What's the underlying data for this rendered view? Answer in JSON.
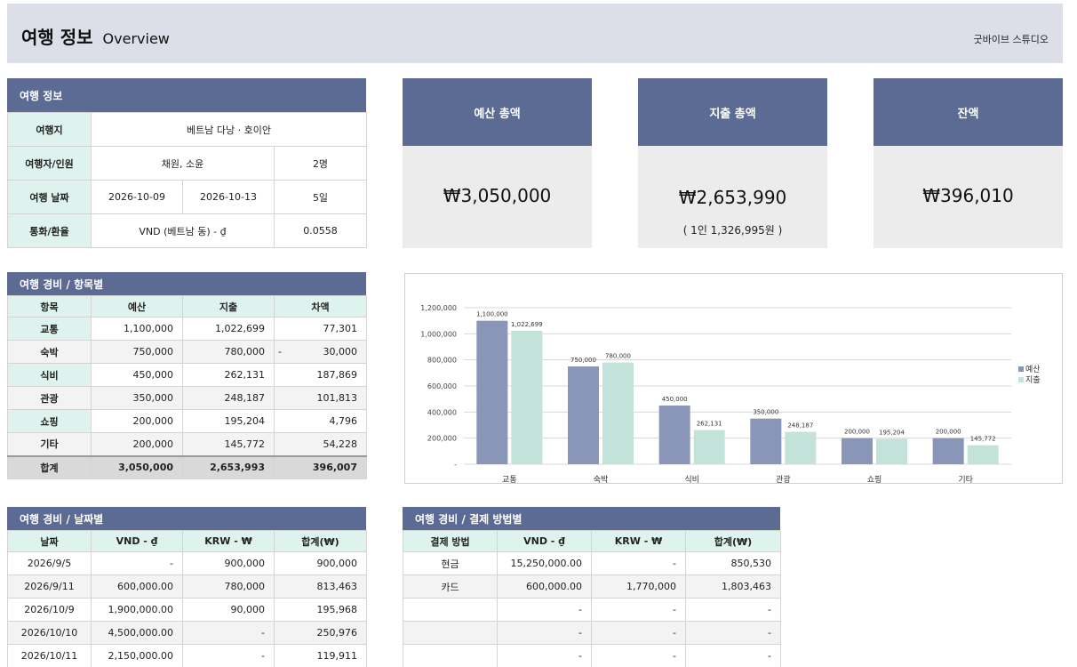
{
  "header": {
    "title": "여행 정보",
    "subtitle": "Overview",
    "studio": "굿바이브 스튜디오"
  },
  "trip_info": {
    "section_title": "여행 정보",
    "destination_label": "여행지",
    "destination": "베트남 다낭 · 호이안",
    "travelers_label": "여행자/인원",
    "travelers": "채원, 소윤",
    "count": "2명",
    "dates_label": "여행 날짜",
    "start_date": "2026-10-09",
    "end_date": "2026-10-13",
    "days": "5일",
    "currency_label": "통화/환율",
    "currency": "VND (베트남 동) - ₫",
    "rate": "0.0558"
  },
  "cards": {
    "budget": {
      "label": "예산 총액",
      "amount": "₩3,050,000"
    },
    "spent": {
      "label": "지출 총액",
      "amount": "₩2,653,990",
      "per_person": "( 1인 1,326,995원 )"
    },
    "balance": {
      "label": "잔액",
      "amount": "₩396,010"
    }
  },
  "by_category": {
    "section_title": "여행 경비 / 항목별",
    "headers": [
      "항목",
      "예산",
      "지출",
      "차액"
    ],
    "rows": [
      {
        "item": "교통",
        "budget": "1,100,000",
        "spent": "1,022,699",
        "diff": "77,301",
        "dash": ""
      },
      {
        "item": "숙박",
        "budget": "750,000",
        "spent": "780,000",
        "diff": "30,000",
        "dash": "-"
      },
      {
        "item": "식비",
        "budget": "450,000",
        "spent": "262,131",
        "diff": "187,869",
        "dash": ""
      },
      {
        "item": "관광",
        "budget": "350,000",
        "spent": "248,187",
        "diff": "101,813",
        "dash": ""
      },
      {
        "item": "쇼핑",
        "budget": "200,000",
        "spent": "195,204",
        "diff": "4,796",
        "dash": ""
      },
      {
        "item": "기타",
        "budget": "200,000",
        "spent": "145,772",
        "diff": "54,228",
        "dash": ""
      }
    ],
    "total": {
      "item": "합계",
      "budget": "3,050,000",
      "spent": "2,653,993",
      "diff": "396,007"
    }
  },
  "chart_data": {
    "type": "bar",
    "categories": [
      "교통",
      "숙박",
      "식비",
      "관광",
      "쇼핑",
      "기타"
    ],
    "series": [
      {
        "name": "예산",
        "color": "#8a96b8",
        "values": [
          1100000,
          750000,
          450000,
          350000,
          200000,
          200000
        ],
        "labels": [
          "1,100,000",
          "750,000",
          "450,000",
          "350,000",
          "200,000",
          "200,000"
        ]
      },
      {
        "name": "지출",
        "color": "#c3e2da",
        "values": [
          1022699,
          780000,
          262131,
          248187,
          195204,
          145772
        ],
        "labels": [
          "1,022,699",
          "780,000",
          "262,131",
          "248,187",
          "195,204",
          "145,772"
        ]
      }
    ],
    "ylim": [
      0,
      1200000
    ],
    "yticks": [
      0,
      200000,
      400000,
      600000,
      800000,
      1000000,
      1200000
    ],
    "ytick_labels": [
      "-",
      "200,000",
      "400,000",
      "600,000",
      "800,000",
      "1,000,000",
      "1,200,000"
    ],
    "legend": "right",
    "grid": true
  },
  "by_date": {
    "section_title": "여행 경비 / 날짜별",
    "headers": [
      "날짜",
      "VND - ₫",
      "KRW - ₩",
      "합계(₩)"
    ],
    "rows": [
      {
        "date": "2026/9/5",
        "vnd": "-",
        "krw": "900,000",
        "sum": "900,000"
      },
      {
        "date": "2026/9/11",
        "vnd": "600,000.00",
        "krw": "780,000",
        "sum": "813,463"
      },
      {
        "date": "2026/10/9",
        "vnd": "1,900,000.00",
        "krw": "90,000",
        "sum": "195,968"
      },
      {
        "date": "2026/10/10",
        "vnd": "4,500,000.00",
        "krw": "-",
        "sum": "250,976"
      },
      {
        "date": "2026/10/11",
        "vnd": "2,150,000.00",
        "krw": "-",
        "sum": "119,911"
      }
    ]
  },
  "by_payment": {
    "section_title": "여행 경비 / 결제 방법별",
    "headers": [
      "결제 방법",
      "VND - ₫",
      "KRW - ₩",
      "합계(₩)"
    ],
    "rows": [
      {
        "method": "현금",
        "vnd": "15,250,000.00",
        "krw": "-",
        "sum": "850,530"
      },
      {
        "method": "카드",
        "vnd": "600,000.00",
        "krw": "1,770,000",
        "sum": "1,803,463"
      },
      {
        "method": "",
        "vnd": "-",
        "krw": "-",
        "sum": "-"
      },
      {
        "method": "",
        "vnd": "-",
        "krw": "-",
        "sum": "-"
      },
      {
        "method": "",
        "vnd": "-",
        "krw": "-",
        "sum": "-"
      }
    ]
  }
}
